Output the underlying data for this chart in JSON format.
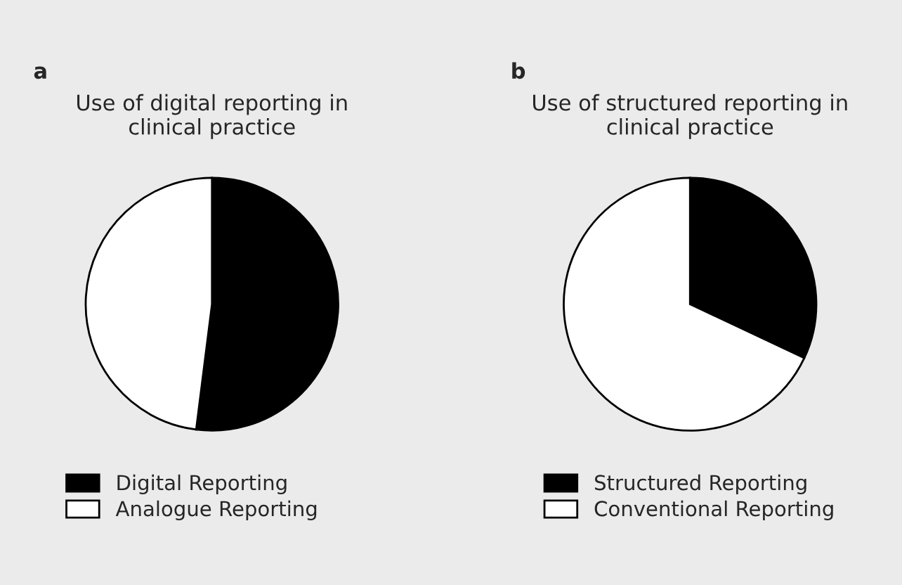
{
  "chart_data": [
    {
      "type": "pie",
      "title": "Use of digital reporting in\nclinical practice",
      "annotations": [
        "a"
      ],
      "categories": [
        "Digital Reporting",
        "Analogue Reporting"
      ],
      "values": [
        52,
        48
      ],
      "colors": [
        "#000000",
        "#ffffff"
      ],
      "legend": "bottom"
    },
    {
      "type": "pie",
      "title": "Use of structured reporting in\nclinical practice",
      "annotations": [
        "b"
      ],
      "categories": [
        "Structured Reporting",
        "Conventional Reporting"
      ],
      "values": [
        32,
        68
      ],
      "colors": [
        "#000000",
        "#ffffff"
      ],
      "legend": "bottom"
    }
  ]
}
